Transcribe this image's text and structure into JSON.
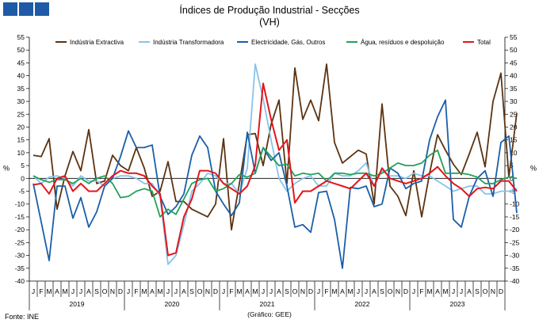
{
  "header": {
    "title": "Índices de Produção Industrial - Secções",
    "subtitle": "(VH)"
  },
  "footer": {
    "source": "Fonte: INE",
    "credit": "(Gráfico:  GEE)"
  },
  "chart_data": {
    "type": "line",
    "title": "Índices de Produção Industrial - Secções",
    "subtitle": "(VH)",
    "ylabel_left": "%",
    "ylabel_right": "%",
    "ylim": [
      -40,
      55
    ],
    "yticks": [
      55,
      50,
      45,
      40,
      35,
      30,
      25,
      20,
      15,
      10,
      5,
      0,
      -5,
      -10,
      -15,
      -20,
      -25,
      -30,
      -35,
      -40
    ],
    "grid": false,
    "legend_position": "top",
    "month_labels": [
      "J",
      "F",
      "M",
      "A",
      "M",
      "J",
      "J",
      "A",
      "S",
      "O",
      "N",
      "D"
    ],
    "years": [
      "2019",
      "2020",
      "2021",
      "2022",
      "2023"
    ],
    "series": [
      {
        "name": "Indústria Extractiva",
        "color": "#5c3310",
        "values": [
          9,
          8.5,
          15.5,
          -12,
          1,
          10.5,
          3,
          19,
          -2,
          -1,
          9,
          5,
          3,
          12,
          4,
          -7,
          -5,
          6.5,
          -9,
          -9,
          -12,
          -13.5,
          -15,
          -10,
          15.5,
          -20,
          -2,
          17,
          17.5,
          5,
          21,
          30.5,
          -2,
          43,
          23,
          30.5,
          22.5,
          44.5,
          14,
          6,
          8.5,
          11,
          9.5,
          -10,
          29,
          -3,
          -7,
          -14.5,
          3,
          -15,
          2,
          17,
          11,
          5.5,
          1.5,
          9.5,
          18,
          4.5,
          30,
          41,
          0.5,
          25.5
        ]
      },
      {
        "name": "Indústria Transformadora",
        "color": "#87c3ec",
        "values": [
          1,
          -2,
          0.5,
          1,
          0,
          -3,
          1,
          -1,
          -1,
          -3,
          0,
          1,
          1,
          0,
          -2,
          -2,
          -7,
          -33.5,
          -30,
          -18,
          -5,
          -2,
          2,
          1,
          -2,
          -2,
          -6,
          4,
          44.5,
          31,
          15,
          0,
          -5,
          -2,
          0,
          1,
          -3,
          -3,
          2,
          1,
          1,
          3,
          6,
          -3,
          3,
          1,
          1,
          0,
          2,
          1,
          1,
          -1,
          -3,
          -5,
          -4,
          -3,
          -3,
          -6,
          -6,
          -5,
          -5,
          -4
        ]
      },
      {
        "name": "Electricidade, Gás, Outros",
        "color": "#1a5fa8",
        "values": [
          -2,
          -17,
          -32,
          -3,
          -3,
          -15.5,
          -7.5,
          -19,
          -13,
          -3,
          0,
          8.5,
          18.5,
          12,
          12,
          13,
          -7,
          -14,
          -11,
          -6,
          9,
          16.5,
          12,
          -5,
          -10,
          -14.5,
          -9.5,
          18,
          2,
          12,
          7,
          10,
          -3,
          -19,
          -18,
          -21,
          -5.5,
          -5,
          -16,
          -35,
          -3.5,
          -4,
          -3,
          -11,
          -10,
          4,
          2,
          -4,
          -2,
          -1,
          15,
          24,
          30.5,
          -16,
          -19,
          -7,
          0,
          3,
          -7,
          14,
          16.5,
          -13.5
        ]
      },
      {
        "name": "Água, resíduos e despoluição",
        "color": "#21a25a",
        "values": [
          1,
          -0.5,
          -1.5,
          -0.5,
          -0.5,
          -2,
          0,
          -2,
          0,
          1,
          -2,
          -7.5,
          -7,
          -5,
          -4,
          -5,
          -15,
          -12,
          -14,
          -8,
          -2,
          -0.5,
          0,
          -5,
          -4,
          -2,
          1.5,
          0.5,
          2,
          12,
          8.5,
          5,
          5.5,
          1,
          2,
          1.5,
          2,
          -1,
          2,
          2,
          1.5,
          2,
          2,
          1,
          2,
          4,
          6,
          5,
          5,
          6,
          9,
          11,
          2,
          2,
          2,
          1.5,
          0.5,
          -2,
          -2,
          -0.5,
          0.5,
          0
        ]
      },
      {
        "name": "Total",
        "color": "#e3151a",
        "values": [
          -2.5,
          -2,
          -6,
          0,
          1,
          -5,
          -2,
          -5,
          -5,
          -2,
          1,
          3,
          2,
          2,
          1,
          -3,
          -6,
          -30,
          -29,
          -15,
          -8,
          3,
          3,
          2,
          -2,
          -4,
          -6,
          -3,
          5,
          37,
          23,
          11,
          15,
          -9.5,
          -5,
          -5,
          -3,
          -1,
          -2,
          -3,
          -4,
          -1,
          2,
          -3,
          4,
          0,
          -1,
          -2,
          -1,
          0,
          2,
          4.5,
          1,
          -2,
          -4,
          -7,
          -4,
          -3.5,
          -4,
          -1,
          -1,
          -5
        ]
      }
    ]
  }
}
